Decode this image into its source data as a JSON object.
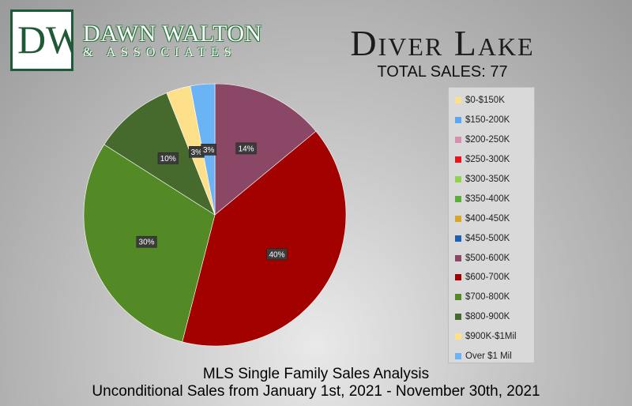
{
  "brand": {
    "logo_initials": "DW",
    "name": "DAWN WALTON",
    "sub": "& ASSOCIATES"
  },
  "header": {
    "title": "Diver Lake",
    "total_sales": "TOTAL SALES: 77"
  },
  "footer": {
    "line1": "MLS Single Family Sales Analysis",
    "line2": "Unconditional Sales from January 1st, 2021 - November 30th, 2021"
  },
  "legend": [
    {
      "label": "$0-$150K",
      "color": "#ffe08a"
    },
    {
      "label": "$150-200K",
      "color": "#5aa8f0"
    },
    {
      "label": "$200-250K",
      "color": "#d88fb0"
    },
    {
      "label": "$250-300K",
      "color": "#e8151b"
    },
    {
      "label": "$300-350K",
      "color": "#8fd44a"
    },
    {
      "label": "$350-400K",
      "color": "#5cad3c"
    },
    {
      "label": "$400-450K",
      "color": "#d6a823"
    },
    {
      "label": "$450-500K",
      "color": "#1f5fb0"
    },
    {
      "label": "$500-600K",
      "color": "#8b4766"
    },
    {
      "label": "$600-700K",
      "color": "#a30000"
    },
    {
      "label": "$700-800K",
      "color": "#548a26"
    },
    {
      "label": "$800-900K",
      "color": "#466a2e"
    },
    {
      "label": "$900K-$1Mil",
      "color": "#ffe08a"
    },
    {
      "label": "Over $1 Mil",
      "color": "#6ab4f5"
    }
  ],
  "chart_data": {
    "type": "pie",
    "title": "Diver Lake",
    "slices": [
      {
        "category": "$500-600K",
        "value": 14,
        "label": "14%",
        "color": "#8b4766"
      },
      {
        "category": "$600-700K",
        "value": 40,
        "label": "40%",
        "color": "#a30000"
      },
      {
        "category": "$700-800K",
        "value": 30,
        "label": "30%",
        "color": "#548a26"
      },
      {
        "category": "$800-900K",
        "value": 10,
        "label": "10%",
        "color": "#466a2e"
      },
      {
        "category": "$900K-$1Mil",
        "value": 3,
        "label": "3%",
        "color": "#ffe08a"
      },
      {
        "category": "Over $1 Mil",
        "value": 3,
        "label": "3%",
        "color": "#6ab4f5"
      }
    ]
  }
}
